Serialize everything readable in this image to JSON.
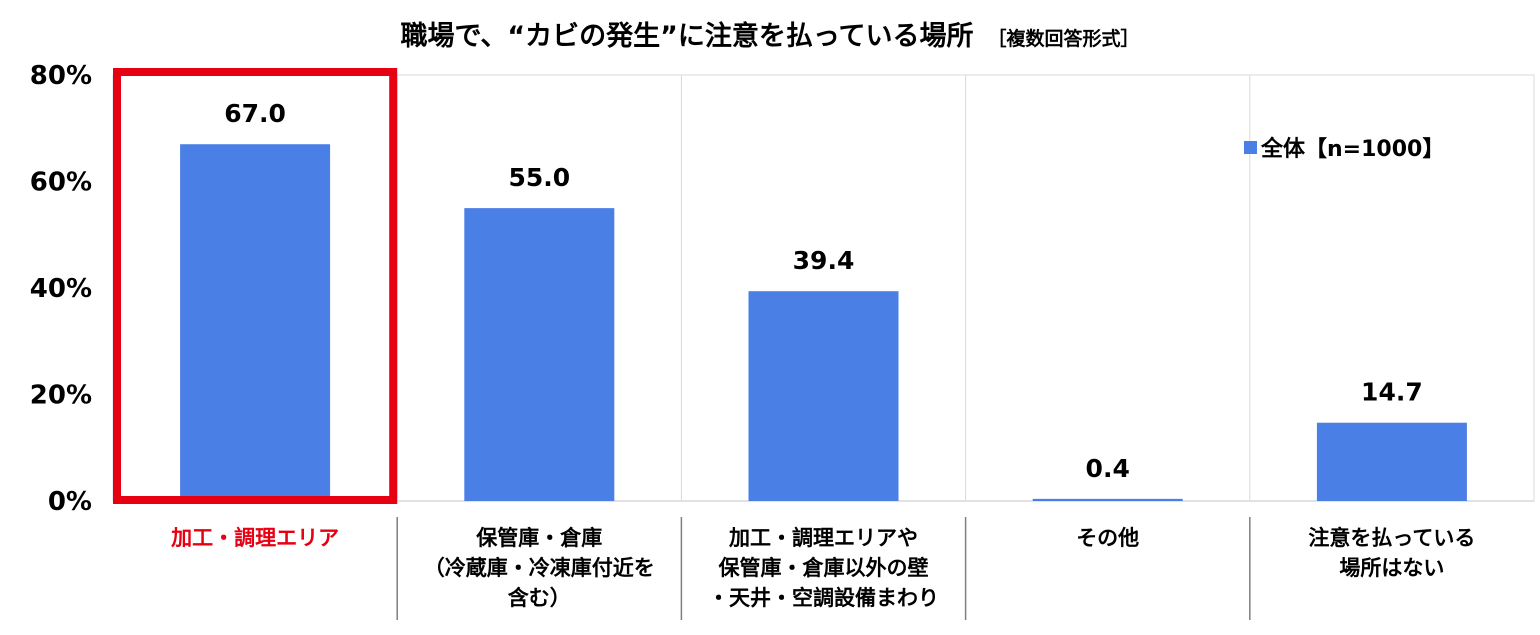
{
  "title": "職場で、“カビの発生”に注意を払っている場所",
  "subtitle": "［複数回答形式］",
  "chart_data": {
    "type": "bar",
    "categories": [
      [
        "加工・調理エリア"
      ],
      [
        "保管庫・倉庫",
        "（冷蔵庫・冷凍庫付近を",
        "含む）"
      ],
      [
        "加工・調理エリアや",
        "保管庫・倉庫以外の壁",
        "・天井・空調設備まわり"
      ],
      [
        "その他"
      ],
      [
        "注意を払っている",
        "場所はない"
      ]
    ],
    "series": [
      {
        "name": "全体【n=1000】",
        "values": [
          67.0,
          55.0,
          39.4,
          0.4,
          14.7
        ]
      }
    ],
    "value_labels": [
      "67.0",
      "55.0",
      "39.4",
      "0.4",
      "14.7"
    ],
    "yticks": [
      "0%",
      "20%",
      "40%",
      "60%",
      "80%"
    ],
    "ylim": [
      0,
      80
    ],
    "grid": "vertical separators between categories",
    "legend_position": "top-right",
    "highlight_index": 0,
    "colors": {
      "bar": "#4a7fe5",
      "highlight": "#e60012",
      "grid": "#d9d9d9",
      "separator": "#7f7f7f"
    }
  }
}
